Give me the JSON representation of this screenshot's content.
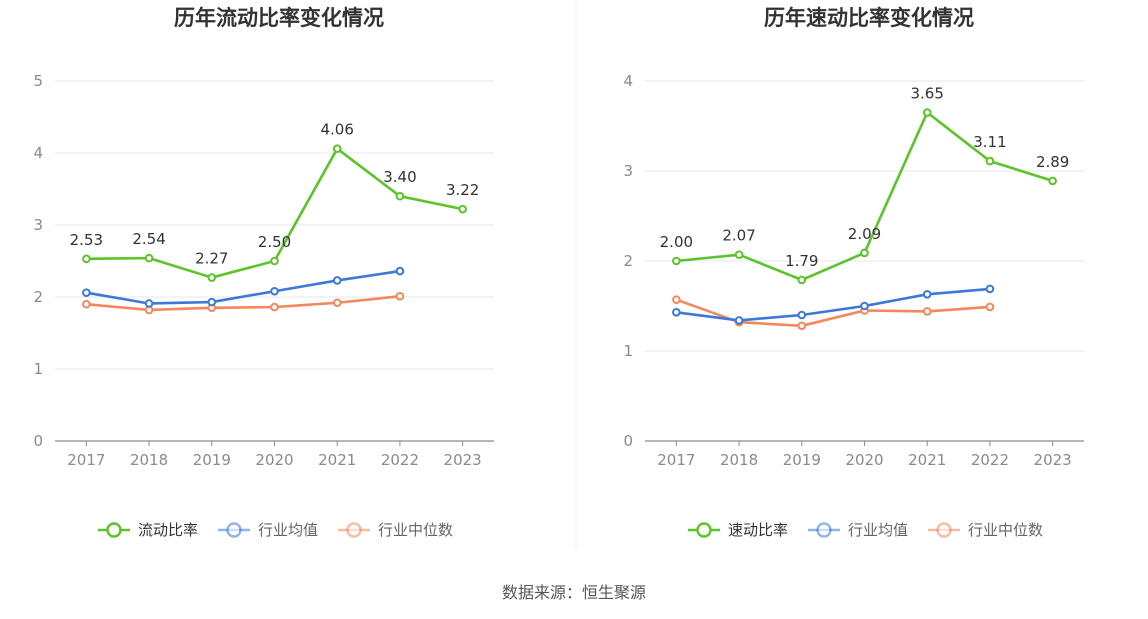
{
  "source_text": "数据来源：恒生聚源",
  "chart_data": [
    {
      "type": "line",
      "title": "历年流动比率变化情况",
      "categories": [
        "2017",
        "2018",
        "2019",
        "2020",
        "2021",
        "2022",
        "2023"
      ],
      "ylim": [
        0,
        5
      ],
      "yticks": [
        "0",
        "1",
        "2",
        "3",
        "4",
        "5"
      ],
      "grid": true,
      "legend_position": "bottom",
      "series": [
        {
          "name": "流动比率",
          "color": "#5cc42b",
          "values": [
            2.53,
            2.54,
            2.27,
            2.5,
            4.06,
            3.4,
            3.22
          ],
          "labels": [
            "2.53",
            "2.54",
            "2.27",
            "2.50",
            "4.06",
            "3.40",
            "3.22"
          ]
        },
        {
          "name": "行业均值",
          "color": "#3c78d8",
          "values": [
            2.06,
            1.91,
            1.93,
            2.08,
            2.23,
            2.36,
            null
          ]
        },
        {
          "name": "行业中位数",
          "color": "#f4875b",
          "values": [
            1.9,
            1.82,
            1.85,
            1.86,
            1.92,
            2.01,
            null
          ]
        }
      ]
    },
    {
      "type": "line",
      "title": "历年速动比率变化情况",
      "categories": [
        "2017",
        "2018",
        "2019",
        "2020",
        "2021",
        "2022",
        "2023"
      ],
      "ylim": [
        0,
        4
      ],
      "yticks": [
        "0",
        "1",
        "2",
        "3",
        "4"
      ],
      "grid": true,
      "legend_position": "bottom",
      "series": [
        {
          "name": "速动比率",
          "color": "#5cc42b",
          "values": [
            2.0,
            2.07,
            1.79,
            2.09,
            3.65,
            3.11,
            2.89
          ],
          "labels": [
            "2.00",
            "2.07",
            "1.79",
            "2.09",
            "3.65",
            "3.11",
            "2.89"
          ]
        },
        {
          "name": "行业均值",
          "color": "#3c78d8",
          "values": [
            1.43,
            1.34,
            1.4,
            1.5,
            1.63,
            1.69,
            null
          ]
        },
        {
          "name": "行业中位数",
          "color": "#f4875b",
          "values": [
            1.57,
            1.32,
            1.28,
            1.45,
            1.44,
            1.49,
            null
          ]
        }
      ]
    }
  ]
}
